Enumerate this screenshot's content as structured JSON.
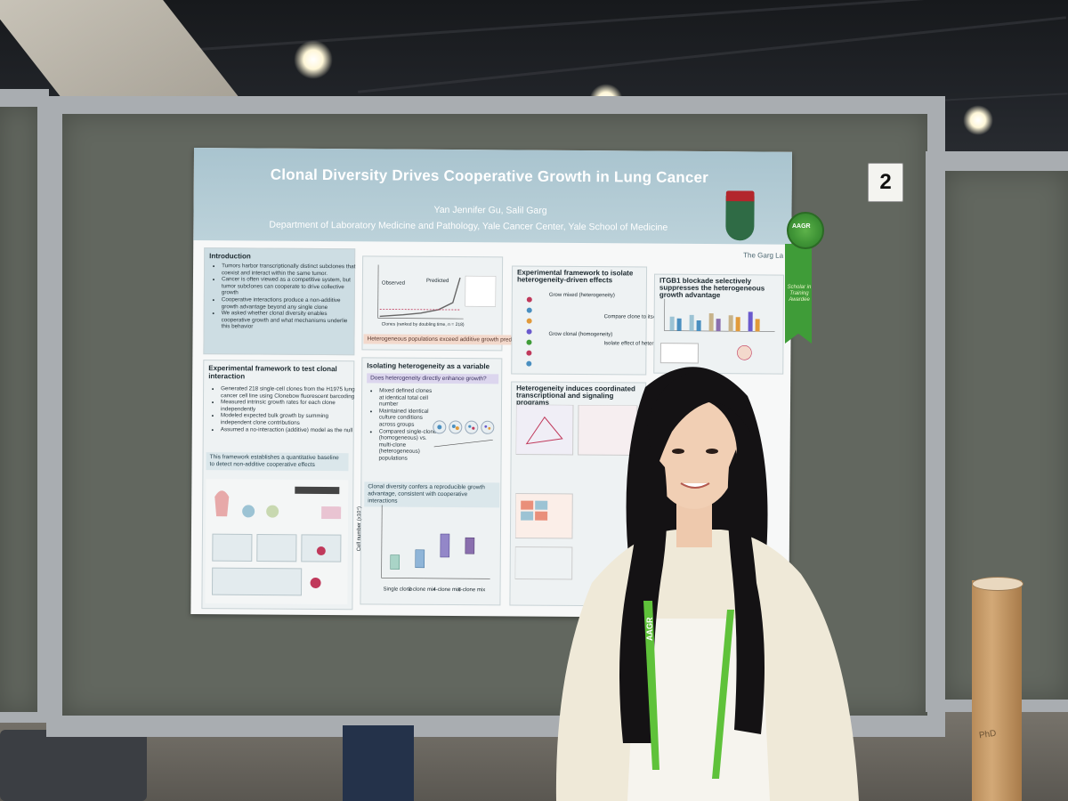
{
  "scene": {
    "booth_number": "2"
  },
  "poster": {
    "title": "Clonal Diversity Drives Cooperative Growth in Lung Cancer",
    "authors": "Yan Jennifer Gu, Salil Garg",
    "affiliation": "Department of Laboratory Medicine and Pathology, Yale Cancer Center, Yale School of Medicine",
    "lab": "The Garg La",
    "intro": {
      "title": "Introduction",
      "bullets": [
        "Tumors harbor transcriptionally distinct subclones that coexist and interact within the same tumor.",
        "Cancer is often viewed as a competitive system, but tumor subclones can cooperate to drive collective growth",
        "Cooperative interactions produce a non-additive growth advantage beyond any single clone",
        "We asked whether clonal diversity enables cooperative growth and what mechanisms underlie this behavior"
      ]
    },
    "framework": {
      "title": "Experimental framework to test clonal interaction",
      "bullets": [
        "Generated 218 single-cell clones from the H1975 lung cancer cell line using Clonebow fluorescent barcoding",
        "Measured intrinsic growth rates for each clone independently",
        "Modeled expected bulk growth by summing independent clone contributions",
        "Assumed a no-interaction (additive) model as the null"
      ],
      "callout": "This framework establishes a quantitative baseline to detect non-additive cooperative effects"
    },
    "growth_plot": {
      "observed": "Observed",
      "predicted": "Predicted",
      "xlabel": "Clones (ranked by doubling time, n = 218)",
      "callout": "Heterogeneous populations exceed additive growth predictions"
    },
    "isolating": {
      "title": "Isolating heterogeneity as a variable",
      "question": "Does heterogeneity directly enhance growth?",
      "bullets": [
        "Mixed defined clones at identical total cell number",
        "Maintained identical culture conditions across groups",
        "Compared single-clone (homogeneous) vs. multi-clone (heterogeneous) populations"
      ],
      "callout": "Clonal diversity confers a reproducible growth advantage, consistent with cooperative interactions",
      "ylabel": "Cell number (x10⁴)",
      "groups": [
        "Single clone",
        "2-clone mix",
        "4-clone mix",
        "8-clone mix"
      ]
    },
    "driven": {
      "title": "Experimental framework to isolate heterogeneity-driven effects",
      "mixed": "Grow mixed (heterogeneity)",
      "clonal": "Grow clonal (homogeneity)",
      "compare": "Compare clone to itself",
      "isolate": "Isolate effect of heterogeneity"
    },
    "coordinated": {
      "title": "Heterogeneity induces coordinated transcriptional and signaling programs"
    },
    "itgb1": {
      "title": "ITGB1 blockade selectively suppresses the heterogeneous growth advantage"
    }
  },
  "ribbon": {
    "badge": "AAGR",
    "text": "Scholar in Training Awardee"
  },
  "lanyard": {
    "text": "AAGR"
  },
  "tube": {
    "label": "PhD"
  },
  "colors": {
    "board": "#62675f",
    "poster_header": "#a9c4cf",
    "ribbon": "#3f9c38",
    "lanyard": "#5fc23a",
    "jacket": "#efe9d8"
  }
}
